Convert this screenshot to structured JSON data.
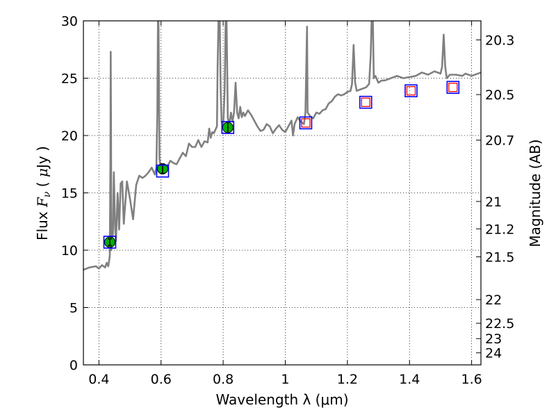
{
  "chart_data": {
    "type": "line",
    "xlabel": "Wavelength  λ (μm)",
    "ylabel": "Flux  F_ν  ( μJy )",
    "ylabel_right": "Magnitude (AB)",
    "xlim": [
      0.35,
      1.63
    ],
    "ylim": [
      0,
      30
    ],
    "x_ticks": [
      0.4,
      0.6,
      0.8,
      1.0,
      1.2,
      1.4,
      1.6
    ],
    "x_tick_labels": [
      "0.4",
      "0.6",
      "0.8",
      "1",
      "1.2",
      "1.4",
      "1.6"
    ],
    "y_ticks": [
      0,
      5,
      10,
      15,
      20,
      25,
      30
    ],
    "y_tick_labels": [
      "0",
      "5",
      "10",
      "15",
      "20",
      "25",
      "30"
    ],
    "right_ticks": [
      {
        "flux": 28.34,
        "label": "20.3"
      },
      {
        "flux": 23.57,
        "label": "20.5"
      },
      {
        "flux": 19.6,
        "label": "20.7"
      },
      {
        "flux": 14.25,
        "label": "21"
      },
      {
        "flux": 11.86,
        "label": "21.2"
      },
      {
        "flux": 9.42,
        "label": "21.5"
      },
      {
        "flux": 5.69,
        "label": "22"
      },
      {
        "flux": 3.63,
        "label": "22.5"
      },
      {
        "flux": 2.29,
        "label": "23"
      },
      {
        "flux": 1.05,
        "label": "24"
      }
    ],
    "grid": true,
    "series": [
      {
        "kind": "model-spectrum",
        "color": "#808080",
        "points": [
          [
            0.35,
            8.3
          ],
          [
            0.37,
            8.5
          ],
          [
            0.39,
            8.6
          ],
          [
            0.4,
            8.4
          ],
          [
            0.41,
            8.7
          ],
          [
            0.42,
            8.5
          ],
          [
            0.425,
            8.9
          ],
          [
            0.43,
            8.6
          ],
          [
            0.435,
            9.5
          ],
          [
            0.437,
            18.0
          ],
          [
            0.438,
            27.3
          ],
          [
            0.439,
            20.0
          ],
          [
            0.44,
            10.0
          ],
          [
            0.445,
            11.5
          ],
          [
            0.448,
            16.8
          ],
          [
            0.452,
            12.0
          ],
          [
            0.455,
            10.8
          ],
          [
            0.46,
            15.0
          ],
          [
            0.465,
            11.8
          ],
          [
            0.47,
            15.8
          ],
          [
            0.475,
            16.0
          ],
          [
            0.48,
            12.3
          ],
          [
            0.49,
            16.0
          ],
          [
            0.5,
            14.5
          ],
          [
            0.51,
            12.7
          ],
          [
            0.52,
            15.7
          ],
          [
            0.53,
            16.5
          ],
          [
            0.54,
            16.3
          ],
          [
            0.55,
            16.5
          ],
          [
            0.56,
            16.8
          ],
          [
            0.57,
            17.2
          ],
          [
            0.58,
            16.6
          ],
          [
            0.585,
            17.2
          ],
          [
            0.588,
            22.0
          ],
          [
            0.59,
            30.0
          ],
          [
            0.592,
            30.0
          ],
          [
            0.595,
            18.0
          ],
          [
            0.6,
            17.0
          ],
          [
            0.61,
            17.5
          ],
          [
            0.62,
            17.3
          ],
          [
            0.63,
            17.8
          ],
          [
            0.64,
            17.6
          ],
          [
            0.65,
            17.5
          ],
          [
            0.66,
            18.0
          ],
          [
            0.67,
            18.5
          ],
          [
            0.68,
            18.2
          ],
          [
            0.69,
            19.3
          ],
          [
            0.7,
            19.0
          ],
          [
            0.71,
            19.0
          ],
          [
            0.72,
            19.6
          ],
          [
            0.73,
            19.0
          ],
          [
            0.74,
            19.5
          ],
          [
            0.75,
            19.4
          ],
          [
            0.755,
            20.6
          ],
          [
            0.76,
            19.8
          ],
          [
            0.765,
            20.3
          ],
          [
            0.77,
            20.2
          ],
          [
            0.775,
            20.5
          ],
          [
            0.78,
            20.8
          ],
          [
            0.782,
            26.0
          ],
          [
            0.785,
            30.0
          ],
          [
            0.789,
            30.0
          ],
          [
            0.792,
            24.0
          ],
          [
            0.795,
            21.2
          ],
          [
            0.8,
            20.8
          ],
          [
            0.805,
            24.0
          ],
          [
            0.808,
            30.0
          ],
          [
            0.811,
            30.0
          ],
          [
            0.815,
            21.5
          ],
          [
            0.82,
            21.0
          ],
          [
            0.825,
            22.0
          ],
          [
            0.83,
            21.2
          ],
          [
            0.835,
            22.0
          ],
          [
            0.84,
            24.6
          ],
          [
            0.845,
            22.0
          ],
          [
            0.85,
            21.5
          ],
          [
            0.855,
            22.5
          ],
          [
            0.86,
            21.6
          ],
          [
            0.865,
            22.0
          ],
          [
            0.87,
            21.7
          ],
          [
            0.88,
            22.2
          ],
          [
            0.89,
            21.8
          ],
          [
            0.9,
            21.3
          ],
          [
            0.91,
            20.8
          ],
          [
            0.92,
            20.4
          ],
          [
            0.93,
            20.5
          ],
          [
            0.94,
            21.0
          ],
          [
            0.95,
            20.8
          ],
          [
            0.96,
            20.2
          ],
          [
            0.97,
            20.6
          ],
          [
            0.98,
            20.9
          ],
          [
            0.99,
            20.5
          ],
          [
            1.0,
            20.3
          ],
          [
            1.01,
            20.8
          ],
          [
            1.02,
            21.3
          ],
          [
            1.025,
            20.0
          ],
          [
            1.03,
            21.0
          ],
          [
            1.04,
            21.6
          ],
          [
            1.05,
            21.2
          ],
          [
            1.06,
            21.0
          ],
          [
            1.065,
            22.0
          ],
          [
            1.07,
            29.5
          ],
          [
            1.072,
            22.0
          ],
          [
            1.08,
            21.7
          ],
          [
            1.09,
            21.5
          ],
          [
            1.1,
            22.0
          ],
          [
            1.11,
            21.9
          ],
          [
            1.12,
            22.2
          ],
          [
            1.13,
            22.3
          ],
          [
            1.14,
            22.8
          ],
          [
            1.15,
            23.0
          ],
          [
            1.16,
            23.4
          ],
          [
            1.17,
            23.6
          ],
          [
            1.18,
            23.5
          ],
          [
            1.19,
            23.6
          ],
          [
            1.2,
            23.8
          ],
          [
            1.21,
            23.9
          ],
          [
            1.215,
            24.5
          ],
          [
            1.22,
            27.9
          ],
          [
            1.225,
            24.6
          ],
          [
            1.23,
            23.9
          ],
          [
            1.24,
            24.0
          ],
          [
            1.25,
            24.1
          ],
          [
            1.26,
            24.2
          ],
          [
            1.27,
            24.5
          ],
          [
            1.275,
            27.0
          ],
          [
            1.278,
            30.0
          ],
          [
            1.282,
            30.0
          ],
          [
            1.285,
            25.0
          ],
          [
            1.29,
            25.2
          ],
          [
            1.3,
            24.6
          ],
          [
            1.31,
            24.8
          ],
          [
            1.32,
            24.8
          ],
          [
            1.34,
            25.0
          ],
          [
            1.36,
            25.2
          ],
          [
            1.38,
            25.0
          ],
          [
            1.4,
            25.1
          ],
          [
            1.42,
            25.2
          ],
          [
            1.44,
            25.5
          ],
          [
            1.46,
            25.3
          ],
          [
            1.48,
            25.6
          ],
          [
            1.5,
            25.4
          ],
          [
            1.505,
            26.0
          ],
          [
            1.51,
            28.8
          ],
          [
            1.515,
            26.0
          ],
          [
            1.52,
            25.0
          ],
          [
            1.53,
            25.3
          ],
          [
            1.55,
            25.3
          ],
          [
            1.57,
            25.2
          ],
          [
            1.58,
            25.4
          ],
          [
            1.6,
            25.2
          ],
          [
            1.63,
            25.5
          ]
        ]
      },
      {
        "kind": "observed-photometry",
        "marker": "filled-circle",
        "color": "#00b000",
        "points": [
          {
            "x": 0.435,
            "y": 10.7,
            "err": 0.3
          },
          {
            "x": 0.605,
            "y": 17.1,
            "err": 0.4
          },
          {
            "x": 0.815,
            "y": 20.7,
            "err": 0.5
          }
        ]
      },
      {
        "kind": "model-photometry",
        "marker": "open-square",
        "color": "#0000ff",
        "points": [
          {
            "x": 0.435,
            "y": 10.7
          },
          {
            "x": 0.605,
            "y": 16.9
          },
          {
            "x": 0.815,
            "y": 20.7
          },
          {
            "x": 1.066,
            "y": 21.1
          },
          {
            "x": 1.259,
            "y": 22.9
          },
          {
            "x": 1.405,
            "y": 23.9
          },
          {
            "x": 1.54,
            "y": 24.2
          }
        ]
      },
      {
        "kind": "upper-limit-points",
        "marker": "open-square-small",
        "color": "#ff0000",
        "points": [
          {
            "x": 1.066,
            "y": 21.1
          },
          {
            "x": 1.259,
            "y": 22.9
          },
          {
            "x": 1.405,
            "y": 23.9
          },
          {
            "x": 1.54,
            "y": 24.2
          }
        ]
      }
    ]
  }
}
